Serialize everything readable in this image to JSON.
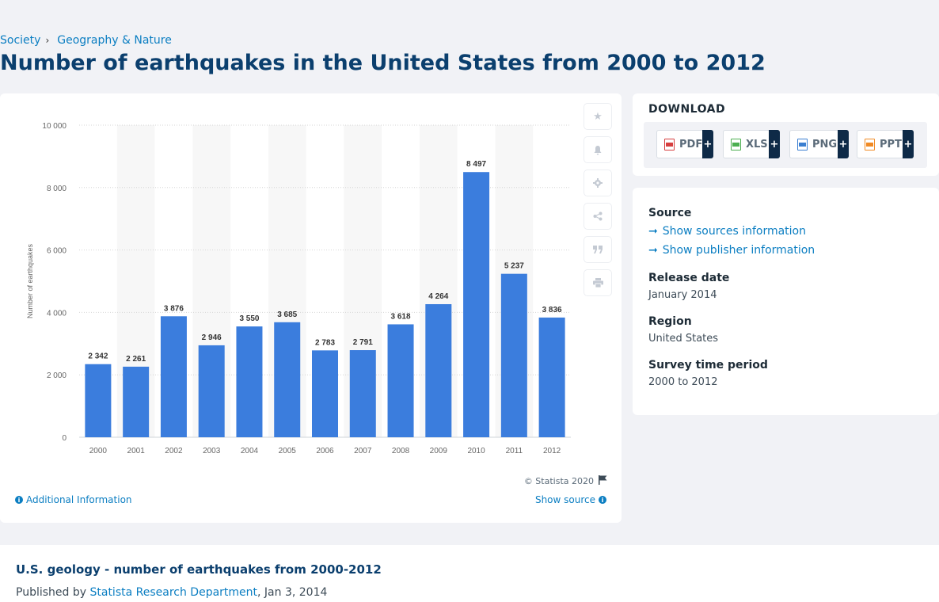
{
  "breadcrumb": {
    "items": [
      "Society",
      "Geography & Nature"
    ]
  },
  "page_title": "Number of earthquakes in the United States from 2000 to 2012",
  "chart_panel": {
    "copyright": "© Statista 2020",
    "additional_info": "Additional Information",
    "show_source": "Show source"
  },
  "download": {
    "title": "DOWNLOAD",
    "buttons": [
      {
        "label": "PDF",
        "icon": "pdf-file-icon",
        "color": "#d63e3e"
      },
      {
        "label": "XLS",
        "icon": "xls-file-icon",
        "color": "#4caf50"
      },
      {
        "label": "PNG",
        "icon": "png-file-icon",
        "color": "#3b7fd1"
      },
      {
        "label": "PPT",
        "icon": "ppt-file-icon",
        "color": "#f08a24"
      }
    ],
    "plus": "+"
  },
  "meta": {
    "source_label": "Source",
    "sources_link": "Show sources information",
    "publisher_link": "Show publisher information",
    "release_label": "Release date",
    "release_value": "January 2014",
    "region_label": "Region",
    "region_value": "United States",
    "period_label": "Survey time period",
    "period_value": "2000 to 2012"
  },
  "bottom": {
    "title": "U.S. geology - number of earthquakes from 2000-2012",
    "published_prefix": "Published by",
    "publisher": "Statista Research Department",
    "date_suffix": ", Jan 3, 2014"
  },
  "colors": {
    "accent": "#0b7ec2",
    "bar": "#3b7ddd",
    "title": "#0b3f6e"
  },
  "chart_data": {
    "type": "bar",
    "categories": [
      "2000",
      "2001",
      "2002",
      "2003",
      "2004",
      "2005",
      "2006",
      "2007",
      "2008",
      "2009",
      "2010",
      "2011",
      "2012"
    ],
    "values": [
      2342,
      2261,
      3876,
      2946,
      3550,
      3685,
      2783,
      2791,
      3618,
      4264,
      8497,
      5237,
      3836
    ],
    "value_labels": [
      "2 342",
      "2 261",
      "3 876",
      "2 946",
      "3 550",
      "3 685",
      "2 783",
      "2 791",
      "3 618",
      "4 264",
      "8 497",
      "5 237",
      "3 836"
    ],
    "ylabel": "Number of earthquakes",
    "xlabel": "",
    "ylim": [
      0,
      10000
    ],
    "yticks": [
      0,
      2000,
      4000,
      6000,
      8000,
      10000
    ],
    "ytick_labels": [
      "0",
      "2 000",
      "4 000",
      "6 000",
      "8 000",
      "10 000"
    ],
    "grid": true
  }
}
